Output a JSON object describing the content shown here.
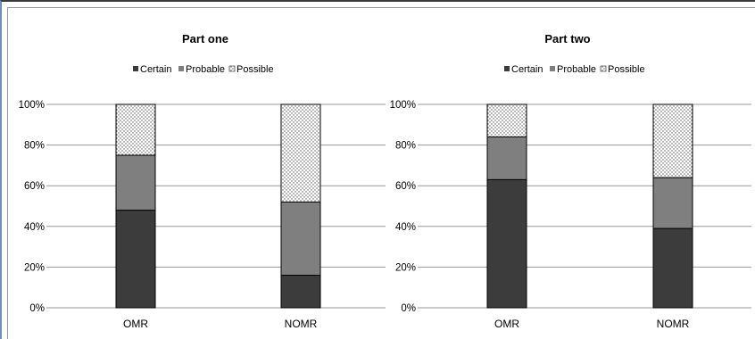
{
  "colors": {
    "certain": "#3c3c3c",
    "probable": "#7f7f7f",
    "possible_pattern": "dotted-white",
    "gridline": "#9a9a9a",
    "window_border": "#6f8fb8"
  },
  "chart_data": [
    {
      "type": "bar",
      "stacked": "percent",
      "title": "Part one",
      "categories": [
        "OMR",
        "NOMR"
      ],
      "legend_position": "top",
      "grid": true,
      "yticks": [
        "0%",
        "20%",
        "40%",
        "60%",
        "80%",
        "100%"
      ],
      "ylim": [
        0,
        100
      ],
      "series": [
        {
          "name": "Certain",
          "values": [
            48,
            16
          ]
        },
        {
          "name": "Probable",
          "values": [
            27,
            36
          ]
        },
        {
          "name": "Possible",
          "values": [
            25,
            48
          ]
        }
      ]
    },
    {
      "type": "bar",
      "stacked": "percent",
      "title": "Part two",
      "categories": [
        "OMR",
        "NOMR"
      ],
      "legend_position": "top",
      "grid": true,
      "yticks": [
        "0%",
        "20%",
        "40%",
        "60%",
        "80%",
        "100%"
      ],
      "ylim": [
        0,
        100
      ],
      "series": [
        {
          "name": "Certain",
          "values": [
            63,
            39
          ]
        },
        {
          "name": "Probable",
          "values": [
            21,
            25
          ]
        },
        {
          "name": "Possible",
          "values": [
            16,
            36
          ]
        }
      ]
    }
  ]
}
